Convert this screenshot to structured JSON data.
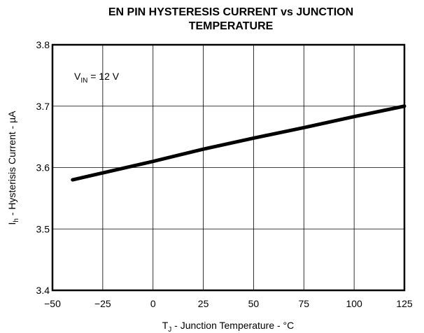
{
  "chart_data": {
    "type": "line",
    "title": [
      "EN PIN HYSTERESIS CURRENT vs JUNCTION",
      "TEMPERATURE"
    ],
    "x_label": [
      "T",
      "J",
      " - Junction Temperature - °C"
    ],
    "y_label": [
      "I",
      "h",
      " - Hysterisis Current - µA"
    ],
    "annotation": [
      "V",
      "IN",
      " = 12 V"
    ],
    "x": [
      -40,
      0,
      25,
      50,
      75,
      100,
      125
    ],
    "series": [
      {
        "color": "#000000",
        "values": [
          3.58,
          3.61,
          3.63,
          3.648,
          3.665,
          3.683,
          3.7
        ]
      }
    ],
    "xlim": [
      -50,
      125
    ],
    "xticks": [
      {
        "value": -50,
        "label": "−50"
      },
      {
        "value": -25,
        "label": "−25"
      },
      0,
      25,
      50,
      75,
      100,
      125
    ],
    "ylim": [
      3.4,
      3.8
    ],
    "yticks": [
      3.4,
      3.5,
      3.6,
      3.7,
      3.8
    ],
    "grid": true
  }
}
